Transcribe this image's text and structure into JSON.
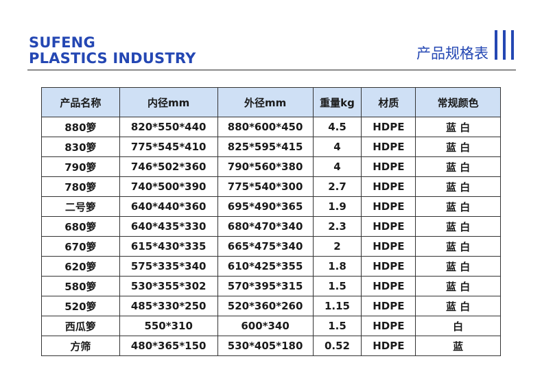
{
  "header": {
    "brand_line1": "SUFENG",
    "brand_line2": "PLASTICS INDUSTRY",
    "title": "产品规格表",
    "accent_color": "#2447b3"
  },
  "table": {
    "headers": [
      "产品名称",
      "内径mm",
      "外径mm",
      "重量kg",
      "材质",
      "常规颜色"
    ],
    "header_bg": "#cfe0f5",
    "rows": [
      [
        "880箩",
        "820*550*440",
        "880*600*450",
        "4.5",
        "HDPE",
        "蓝 白"
      ],
      [
        "830箩",
        "775*545*410",
        "825*595*415",
        "4",
        "HDPE",
        "蓝 白"
      ],
      [
        "790箩",
        "746*502*360",
        "790*560*380",
        "4",
        "HDPE",
        "蓝 白"
      ],
      [
        "780箩",
        "740*500*390",
        "775*540*300",
        "2.7",
        "HDPE",
        "蓝 白"
      ],
      [
        "二号箩",
        "640*440*360",
        "695*490*365",
        "1.9",
        "HDPE",
        "蓝 白"
      ],
      [
        "680箩",
        "640*435*330",
        "680*470*340",
        "2.3",
        "HDPE",
        "蓝 白"
      ],
      [
        "670箩",
        "615*430*335",
        "665*475*340",
        "2",
        "HDPE",
        "蓝 白"
      ],
      [
        "620箩",
        "575*335*340",
        "610*425*355",
        "1.8",
        "HDPE",
        "蓝 白"
      ],
      [
        "580箩",
        "530*355*302",
        "570*395*315",
        "1.5",
        "HDPE",
        "蓝 白"
      ],
      [
        "520箩",
        "485*330*250",
        "520*360*260",
        "1.15",
        "HDPE",
        "蓝 白"
      ],
      [
        "西瓜箩",
        "550*310",
        "600*340",
        "1.5",
        "HDPE",
        "白"
      ],
      [
        "方筛",
        "480*365*150",
        "530*405*180",
        "0.52",
        "HDPE",
        "蓝"
      ]
    ]
  }
}
